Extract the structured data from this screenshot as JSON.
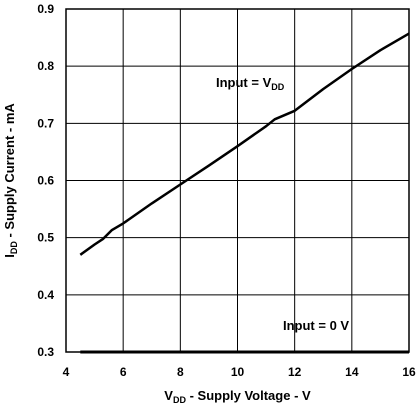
{
  "chart_data": {
    "type": "line",
    "xlabel": {
      "prefix": "V",
      "sub": "DD",
      "suffix": " - Supply Voltage - V"
    },
    "ylabel": {
      "prefix": "I",
      "sub": "DD",
      "suffix": " - Supply Current - mA"
    },
    "xlim": [
      4,
      16
    ],
    "ylim": [
      0.3,
      0.9
    ],
    "xticks": [
      4,
      6,
      8,
      10,
      12,
      14,
      16
    ],
    "yticks": [
      0.3,
      0.4,
      0.5,
      0.6,
      0.7,
      0.8,
      0.9
    ],
    "grid": true,
    "series": [
      {
        "annotation": {
          "prefix": "Input = V",
          "sub": "DD",
          "suffix": ""
        },
        "x": [
          4.5,
          5.0,
          5.3,
          5.6,
          6.0,
          7.0,
          8.0,
          9.0,
          10.0,
          11.0,
          11.3,
          12.0,
          13.0,
          14.0,
          15.0,
          16.0
        ],
        "y": [
          0.47,
          0.488,
          0.498,
          0.513,
          0.525,
          0.56,
          0.593,
          0.626,
          0.66,
          0.695,
          0.707,
          0.722,
          0.76,
          0.795,
          0.828,
          0.857
        ]
      },
      {
        "annotation": {
          "prefix": "Input = 0 V",
          "sub": "",
          "suffix": ""
        },
        "x": [
          4.5,
          16.0
        ],
        "y": [
          0.3,
          0.3
        ]
      }
    ]
  }
}
